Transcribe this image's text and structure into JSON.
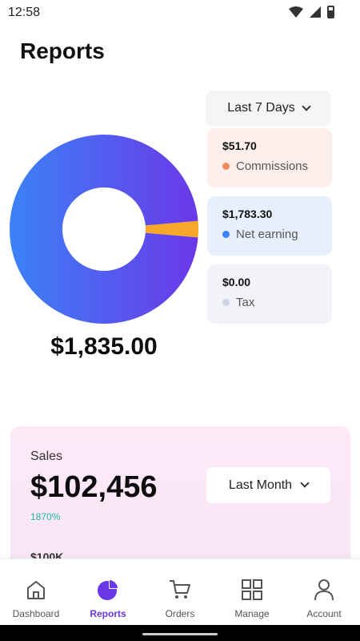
{
  "status_bar": {
    "time": "12:58"
  },
  "header": {
    "title": "Reports"
  },
  "range_dropdown": {
    "label": "Last 7 Days"
  },
  "summary": {
    "total": "$1,835.00",
    "items": [
      {
        "amount": "$51.70",
        "label": "Commissions",
        "color": "#f08a5d",
        "bg": "#fcefeb"
      },
      {
        "amount": "$1,783.30",
        "label": "Net earning",
        "color": "#3b82f6",
        "bg": "#e8effc"
      },
      {
        "amount": "$0.00",
        "label": "Tax",
        "color": "#cfd4e6",
        "bg": "#f2f3f8"
      }
    ]
  },
  "donut": {
    "values": [
      51.7,
      1783.3,
      0.0
    ],
    "colors": {
      "commission": "#f7a82a",
      "gradient_start": "#3b82f6",
      "gradient_end": "#6b38e8"
    }
  },
  "sales": {
    "label": "Sales",
    "value": "$102,456",
    "growth": "1870%",
    "range_label": "Last Month",
    "axis_label": "$100K"
  },
  "nav": {
    "items": [
      {
        "label": "Dashboard",
        "icon": "home-icon",
        "active": false
      },
      {
        "label": "Reports",
        "icon": "pie-chart-icon",
        "active": true
      },
      {
        "label": "Orders",
        "icon": "cart-icon",
        "active": false
      },
      {
        "label": "Manage",
        "icon": "grid-icon",
        "active": false
      },
      {
        "label": "Account",
        "icon": "user-icon",
        "active": false
      }
    ],
    "active_color": "#6b38e8"
  }
}
